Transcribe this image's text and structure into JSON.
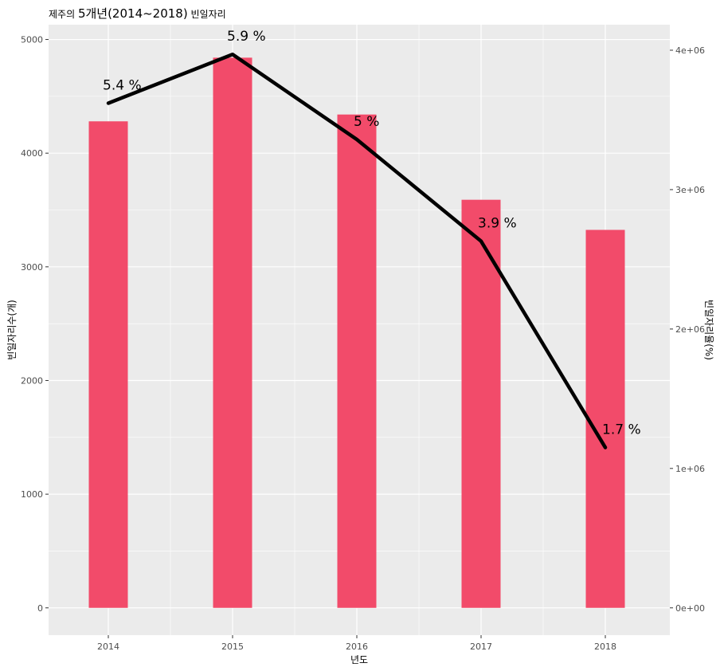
{
  "chart_data": {
    "type": "bar",
    "title": {
      "prefix": "제주의 ",
      "main": "5개년(2014~2018)",
      "suffix": " 빈일자리"
    },
    "xlabel": "년도",
    "ylabel": "빈일자리수(개)",
    "y2label": "빈일자리율(%)",
    "categories": [
      "2014",
      "2015",
      "2016",
      "2017",
      "2018"
    ],
    "series": [
      {
        "kind": "bar",
        "values": [
          4280,
          4840,
          4340,
          3590,
          3325
        ]
      },
      {
        "kind": "line",
        "values": [
          5.4,
          5.9,
          5,
          3.9,
          1.7
        ],
        "labels": [
          "5.4 %",
          "5.9 %",
          "5 %",
          "3.9 %",
          "1.7 %"
        ]
      }
    ],
    "line_secondary_values": [
      3620000,
      3970000,
      3360000,
      2630000,
      1150000
    ],
    "ylim": [
      -240,
      5130
    ],
    "yticks": [
      0,
      1000,
      2000,
      3000,
      4000,
      5000
    ],
    "y2ticks": [
      "0e+00",
      "1e+06",
      "2e+06",
      "3e+06",
      "4e+06"
    ],
    "y2tick_values": [
      0,
      1000000,
      2000000,
      3000000,
      4000000
    ],
    "grid": true,
    "colors": {
      "bar": "#f24b6a",
      "line": "#000000",
      "panel": "#ebebeb",
      "grid": "#ffffff"
    }
  }
}
